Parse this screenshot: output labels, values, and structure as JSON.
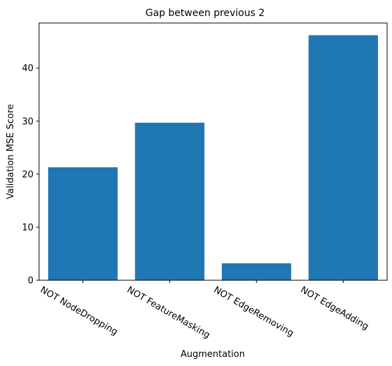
{
  "chart_data": {
    "type": "bar",
    "title": "Gap between previous 2",
    "xlabel": "Augmentation",
    "ylabel": "Validation MSE Score",
    "categories": [
      "NOT NodeDropping",
      "NOT FeatureMasking",
      "NOT EdgeRemoving",
      "NOT EdgeAdding"
    ],
    "values": [
      21.3,
      29.7,
      3.2,
      46.2
    ],
    "ylim": [
      0,
      48.5
    ],
    "yticks": [
      0,
      10,
      20,
      30,
      40
    ],
    "bar_color": "#1f77b4",
    "grid": false,
    "legend": "none"
  }
}
